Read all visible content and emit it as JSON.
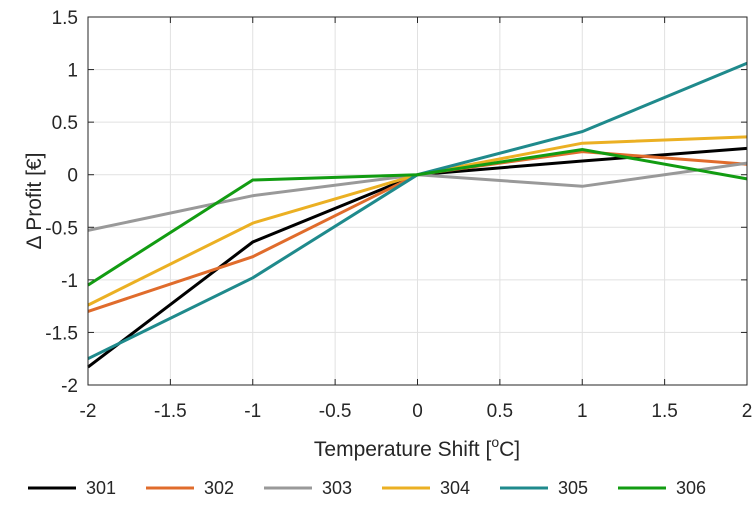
{
  "chart_data": {
    "type": "line",
    "xlabel": "Temperature Shift [",
    "xlabel_super": "o",
    "xlabel_unit": "C]",
    "ylabel": "Δ Profit [€]",
    "xlim": [
      -2,
      2
    ],
    "ylim": [
      -2,
      1.5
    ],
    "x_ticks": [
      -2,
      -1.5,
      -1,
      -0.5,
      0,
      0.5,
      1,
      1.5,
      2
    ],
    "y_ticks": [
      -2,
      -1.5,
      -1,
      -0.5,
      0,
      0.5,
      1,
      1.5
    ],
    "x_tick_labels": [
      "-2",
      "-1.5",
      "-1",
      "-0.5",
      "0",
      "0.5",
      "1",
      "1.5",
      "2"
    ],
    "y_tick_labels": [
      "-2",
      "-1.5",
      "-1",
      "-0.5",
      "0",
      "0.5",
      "1",
      "1.5"
    ],
    "grid": true,
    "legend_position": "bottom",
    "x": [
      -2,
      -1,
      0,
      1,
      2
    ],
    "series": [
      {
        "name": "301",
        "color": "#000000",
        "values": [
          -1.83,
          -0.64,
          0,
          0.13,
          0.25
        ]
      },
      {
        "name": "302",
        "color": "#e06c2c",
        "values": [
          -1.3,
          -0.78,
          0,
          0.22,
          0.1
        ]
      },
      {
        "name": "303",
        "color": "#999999",
        "values": [
          -0.53,
          -0.2,
          0,
          -0.11,
          0.11
        ]
      },
      {
        "name": "304",
        "color": "#ebb023",
        "values": [
          -1.24,
          -0.46,
          0,
          0.3,
          0.36
        ]
      },
      {
        "name": "305",
        "color": "#1f8a8c",
        "values": [
          -1.75,
          -0.98,
          0,
          0.41,
          1.06
        ]
      },
      {
        "name": "306",
        "color": "#129c12",
        "values": [
          -1.05,
          -0.05,
          0,
          0.24,
          -0.04
        ]
      }
    ]
  }
}
